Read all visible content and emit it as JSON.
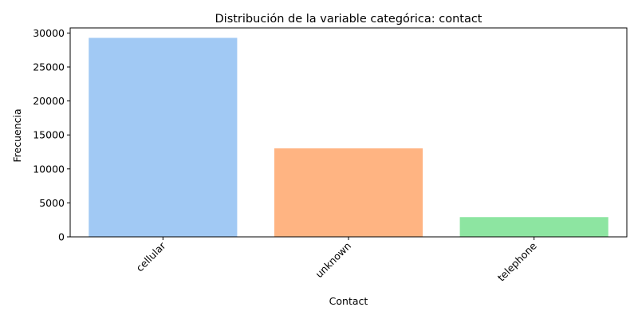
{
  "chart_data": {
    "type": "bar",
    "title": "Distribución de la variable categórica: contact",
    "xlabel": "Contact",
    "ylabel": "Frecuencia",
    "categories": [
      "cellular",
      "unknown",
      "telephone"
    ],
    "values": [
      29285,
      13020,
      2906
    ],
    "colors": [
      "#a1c9f4",
      "#ffb482",
      "#8de5a1"
    ],
    "ylim": [
      0,
      30750
    ],
    "yticks": [
      0,
      5000,
      10000,
      15000,
      20000,
      25000,
      30000
    ],
    "ytick_labels": [
      "0",
      "5000",
      "10000",
      "15000",
      "20000",
      "25000",
      "30000"
    ],
    "xtick_rotation_deg": 45,
    "grid": false,
    "legend": "none"
  }
}
